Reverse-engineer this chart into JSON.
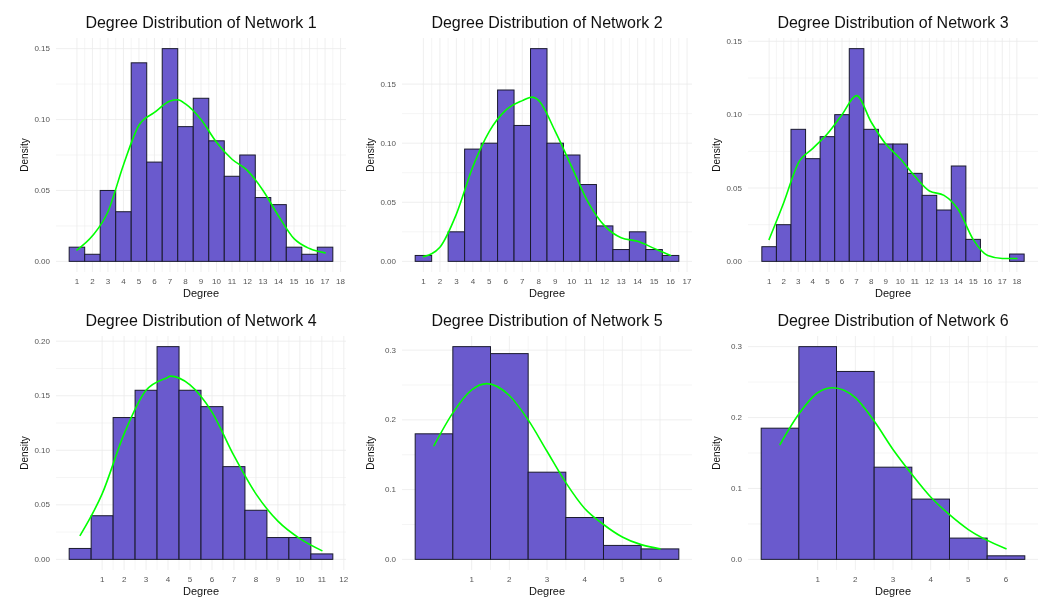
{
  "chart_data": [
    {
      "type": "histogram",
      "title": "Degree Distribution of Network 1",
      "xlabel": "Degree",
      "ylabel": "Density",
      "grid": true,
      "xlim": [
        -0.35,
        18.35
      ],
      "ylim": [
        -0.0075,
        0.1575
      ],
      "xticks": [
        1,
        2,
        3,
        4,
        5,
        6,
        7,
        8,
        9,
        10,
        11,
        12,
        13,
        14,
        15,
        16,
        17,
        18
      ],
      "yticks": [
        {
          "value": 0,
          "label": "0.00"
        },
        {
          "value": 0.05,
          "label": "0.05"
        },
        {
          "value": 0.1,
          "label": "0.10"
        },
        {
          "value": 0.15,
          "label": "0.15"
        }
      ],
      "series": [
        {
          "type": "histogram",
          "color": "#6a5acd",
          "bins": [
            0.5,
            1.5,
            2.5,
            3.5,
            4.5,
            5.5,
            6.5,
            7.5,
            8.5,
            9.5,
            10.5,
            11.5,
            12.5,
            13.5,
            14.5,
            15.5,
            16.5,
            17.5
          ],
          "values": [
            0.01,
            0.005,
            0.05,
            0.035,
            0.14,
            0.07,
            0.15,
            0.095,
            0.115,
            0.085,
            0.06,
            0.075,
            0.045,
            0.04,
            0.01,
            0.005,
            0.01
          ]
        },
        {
          "type": "line",
          "color": "#00ff00",
          "x": [
            1,
            2,
            3,
            4,
            5,
            6,
            7,
            7.5,
            8,
            9,
            10,
            11,
            12,
            13,
            14,
            15,
            16,
            17
          ],
          "values": [
            0.008,
            0.018,
            0.035,
            0.068,
            0.096,
            0.105,
            0.113,
            0.114,
            0.111,
            0.1,
            0.084,
            0.072,
            0.064,
            0.05,
            0.032,
            0.016,
            0.009,
            0.006
          ]
        }
      ]
    },
    {
      "type": "histogram",
      "title": "Degree Distribution of Network 2",
      "xlabel": "Degree",
      "ylabel": "Density",
      "grid": true,
      "xlim": [
        -0.3,
        17.3
      ],
      "ylim": [
        -0.009,
        0.189
      ],
      "xticks": [
        1,
        2,
        3,
        4,
        5,
        6,
        7,
        8,
        9,
        10,
        11,
        12,
        13,
        14,
        15,
        16,
        17
      ],
      "yticks": [
        {
          "value": 0,
          "label": "0.00"
        },
        {
          "value": 0.05,
          "label": "0.05"
        },
        {
          "value": 0.1,
          "label": "0.10"
        },
        {
          "value": 0.15,
          "label": "0.15"
        }
      ],
      "series": [
        {
          "type": "histogram",
          "color": "#6a5acd",
          "bins": [
            0.5,
            1.5,
            2.5,
            3.5,
            4.5,
            5.5,
            6.5,
            7.5,
            8.5,
            9.5,
            10.5,
            11.5,
            12.5,
            13.5,
            14.5,
            15.5,
            16.5
          ],
          "values": [
            0.005,
            0,
            0.025,
            0.095,
            0.1,
            0.145,
            0.115,
            0.18,
            0.1,
            0.09,
            0.065,
            0.03,
            0.01,
            0.025,
            0.01,
            0.005
          ]
        },
        {
          "type": "line",
          "color": "#00ff00",
          "x": [
            1,
            2,
            3,
            4,
            5,
            6,
            7,
            7.6,
            8,
            9,
            10,
            11,
            12,
            13,
            14,
            15,
            16
          ],
          "values": [
            0.004,
            0.012,
            0.04,
            0.08,
            0.11,
            0.128,
            0.136,
            0.139,
            0.136,
            0.11,
            0.08,
            0.05,
            0.03,
            0.02,
            0.017,
            0.011,
            0.005
          ]
        }
      ]
    },
    {
      "type": "histogram",
      "title": "Degree Distribution of Network 3",
      "xlabel": "Degree",
      "ylabel": "Density",
      "grid": true,
      "xlim": [
        -0.45,
        19.45
      ],
      "ylim": [
        -0.00725,
        0.15225
      ],
      "xticks": [
        1,
        2,
        3,
        4,
        5,
        6,
        7,
        8,
        9,
        10,
        11,
        12,
        13,
        14,
        15,
        16,
        17,
        18
      ],
      "yticks": [
        {
          "value": 0,
          "label": "0.00"
        },
        {
          "value": 0.05,
          "label": "0.05"
        },
        {
          "value": 0.1,
          "label": "0.10"
        },
        {
          "value": 0.15,
          "label": "0.15"
        }
      ],
      "series": [
        {
          "type": "histogram",
          "color": "#6a5acd",
          "bins": [
            0.5,
            1.5,
            2.5,
            3.5,
            4.5,
            5.5,
            6.5,
            7.5,
            8.5,
            9.5,
            10.5,
            11.5,
            12.5,
            13.5,
            14.5,
            15.5,
            16.5,
            17.5,
            18.5
          ],
          "values": [
            0.01,
            0.025,
            0.09,
            0.07,
            0.085,
            0.1,
            0.145,
            0.09,
            0.08,
            0.08,
            0.06,
            0.045,
            0.035,
            0.065,
            0.015,
            0,
            0,
            0.005
          ]
        },
        {
          "type": "line",
          "color": "#00ff00",
          "x": [
            1,
            2,
            3,
            4,
            5,
            6,
            7,
            8,
            9,
            10,
            11,
            12,
            13,
            14,
            15,
            16,
            17,
            18
          ],
          "values": [
            0.015,
            0.04,
            0.067,
            0.077,
            0.087,
            0.1,
            0.113,
            0.095,
            0.08,
            0.07,
            0.058,
            0.048,
            0.045,
            0.035,
            0.015,
            0.004,
            0.002,
            0.002
          ]
        }
      ]
    },
    {
      "type": "histogram",
      "title": "Degree Distribution of Network 4",
      "xlabel": "Degree",
      "ylabel": "Density",
      "grid": true,
      "xlim": [
        -1.1,
        12.1
      ],
      "ylim": [
        -0.00975,
        0.20475
      ],
      "xticks": [
        1,
        2,
        3,
        4,
        5,
        6,
        7,
        8,
        9,
        10,
        11,
        12
      ],
      "yticks": [
        {
          "value": 0,
          "label": "0.00"
        },
        {
          "value": 0.05,
          "label": "0.05"
        },
        {
          "value": 0.1,
          "label": "0.10"
        },
        {
          "value": 0.15,
          "label": "0.15"
        },
        {
          "value": 0.2,
          "label": "0.20"
        }
      ],
      "series": [
        {
          "type": "histogram",
          "color": "#6a5acd",
          "bins": [
            -0.5,
            0.5,
            1.5,
            2.5,
            3.5,
            4.5,
            5.5,
            6.5,
            7.5,
            8.5,
            9.5,
            10.5,
            11.5
          ],
          "values": [
            0.01,
            0.04,
            0.13,
            0.155,
            0.195,
            0.155,
            0.14,
            0.085,
            0.045,
            0.02,
            0.02,
            0.005
          ]
        },
        {
          "type": "line",
          "color": "#00ff00",
          "x": [
            0,
            1,
            2,
            3,
            4,
            4.1,
            5,
            6,
            7,
            8,
            9,
            10,
            11
          ],
          "values": [
            0.022,
            0.06,
            0.115,
            0.155,
            0.167,
            0.168,
            0.16,
            0.135,
            0.095,
            0.06,
            0.035,
            0.019,
            0.008
          ]
        }
      ]
    },
    {
      "type": "histogram",
      "title": "Degree Distribution of Network 5",
      "xlabel": "Degree",
      "ylabel": "Density",
      "grid": true,
      "xlim": [
        -0.85,
        6.85
      ],
      "ylim": [
        -0.01525,
        0.32025
      ],
      "xticks": [
        1,
        2,
        3,
        4,
        5,
        6
      ],
      "yticks": [
        {
          "value": 0,
          "label": "0.0"
        },
        {
          "value": 0.1,
          "label": "0.1"
        },
        {
          "value": 0.2,
          "label": "0.2"
        },
        {
          "value": 0.3,
          "label": "0.3"
        }
      ],
      "series": [
        {
          "type": "histogram",
          "color": "#6a5acd",
          "bins": [
            -0.5,
            0.5,
            1.5,
            2.5,
            3.5,
            4.5,
            5.5,
            6.5
          ],
          "values": [
            0.18,
            0.305,
            0.295,
            0.125,
            0.06,
            0.02,
            0.015
          ]
        },
        {
          "type": "line",
          "color": "#00ff00",
          "x": [
            0,
            0.5,
            1,
            1.4,
            2,
            2.5,
            3,
            3.5,
            4,
            4.5,
            5,
            6
          ],
          "values": [
            0.163,
            0.21,
            0.243,
            0.252,
            0.235,
            0.2,
            0.155,
            0.11,
            0.073,
            0.05,
            0.032,
            0.015
          ]
        }
      ]
    },
    {
      "type": "histogram",
      "title": "Degree Distribution of Network 6",
      "xlabel": "Degree",
      "ylabel": "Density",
      "grid": true,
      "xlim": [
        -0.85,
        6.85
      ],
      "ylim": [
        -0.015,
        0.315
      ],
      "xticks": [
        1,
        2,
        3,
        4,
        5,
        6
      ],
      "yticks": [
        {
          "value": 0,
          "label": "0.0"
        },
        {
          "value": 0.1,
          "label": "0.1"
        },
        {
          "value": 0.2,
          "label": "0.2"
        },
        {
          "value": 0.3,
          "label": "0.3"
        }
      ],
      "series": [
        {
          "type": "histogram",
          "color": "#6a5acd",
          "bins": [
            -0.5,
            0.5,
            1.5,
            2.5,
            3.5,
            4.5,
            5.5,
            6.5
          ],
          "values": [
            0.185,
            0.3,
            0.265,
            0.13,
            0.085,
            0.03,
            0.005
          ]
        },
        {
          "type": "line",
          "color": "#00ff00",
          "x": [
            0,
            0.5,
            1,
            1.4,
            2,
            2.5,
            3,
            3.5,
            4,
            4.5,
            5,
            6
          ],
          "values": [
            0.162,
            0.205,
            0.235,
            0.242,
            0.228,
            0.195,
            0.155,
            0.12,
            0.088,
            0.063,
            0.042,
            0.015
          ]
        }
      ]
    }
  ]
}
